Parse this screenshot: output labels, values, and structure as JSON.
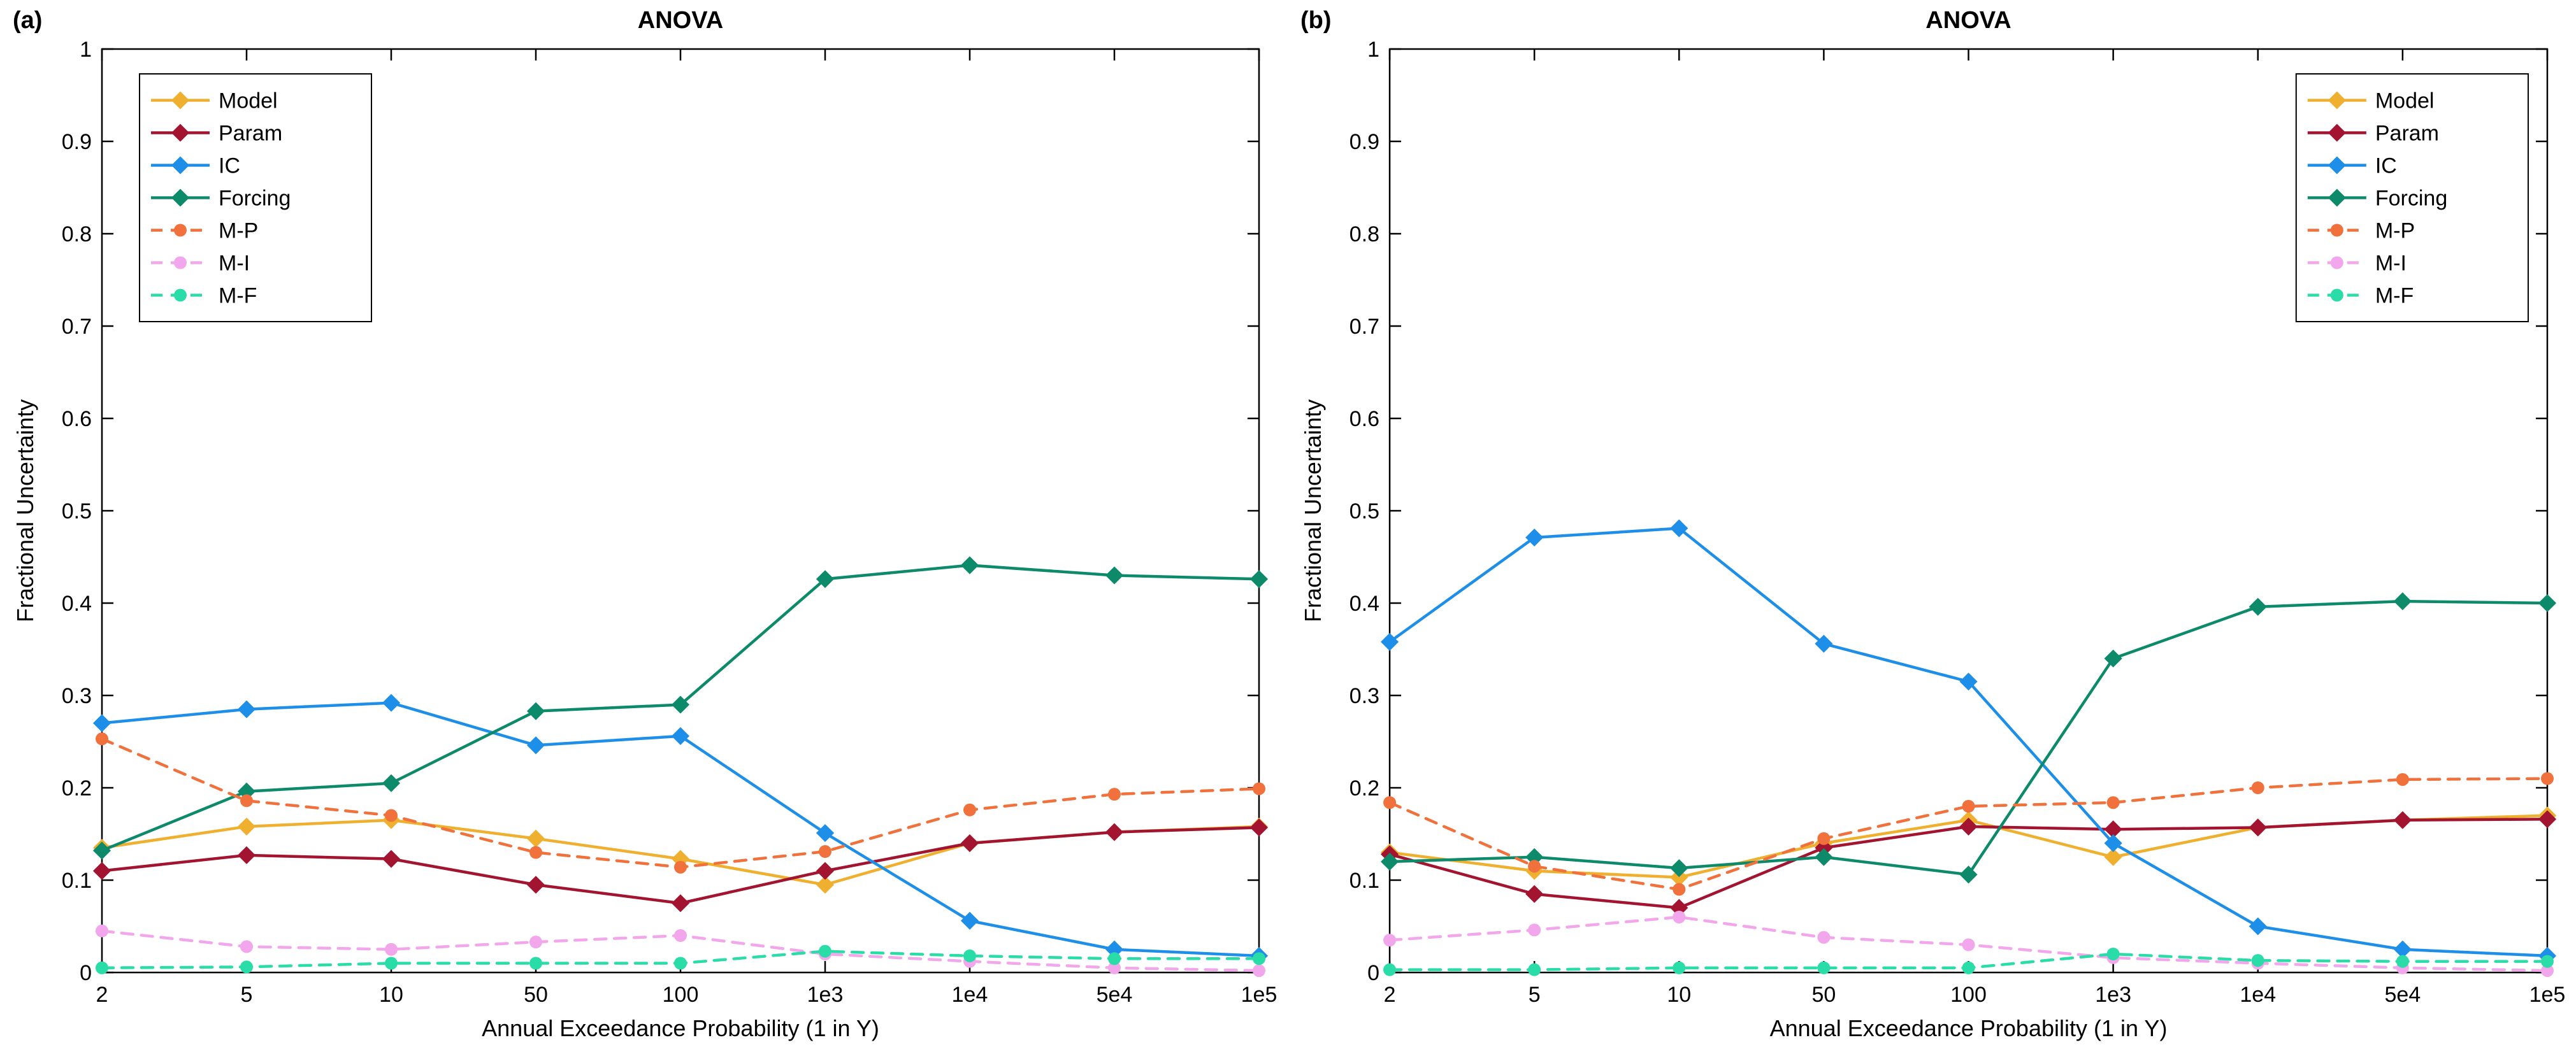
{
  "figure": {
    "background": "#ffffff",
    "text_color": "#000000",
    "axes_color": "#000000"
  },
  "chart_data": [
    {
      "type": "line",
      "panel_label": "(a)",
      "title": "ANOVA",
      "xlabel": "Annual Exceedance Probability (1 in Y)",
      "ylabel": "Fractional Uncertainty",
      "ylim": [
        0,
        1
      ],
      "ytick_labels": [
        "0",
        "0.1",
        "0.2",
        "0.3",
        "0.4",
        "0.5",
        "0.6",
        "0.7",
        "0.8",
        "0.9",
        "1"
      ],
      "categories": [
        "2",
        "5",
        "10",
        "50",
        "100",
        "1e3",
        "1e4",
        "5e4",
        "1e5"
      ],
      "grid": false,
      "legend_position": "top-left",
      "series": [
        {
          "name": "Model",
          "color": "#F0B02F",
          "line_style": "solid",
          "marker": "diamond",
          "values": [
            0.135,
            0.158,
            0.165,
            0.145,
            0.123,
            0.095,
            0.14,
            0.152,
            0.158
          ]
        },
        {
          "name": "Param",
          "color": "#A2142F",
          "line_style": "solid",
          "marker": "diamond",
          "values": [
            0.11,
            0.127,
            0.123,
            0.095,
            0.075,
            0.11,
            0.14,
            0.152,
            0.157
          ]
        },
        {
          "name": "IC",
          "color": "#1E8FE8",
          "line_style": "solid",
          "marker": "diamond",
          "values": [
            0.27,
            0.285,
            0.292,
            0.246,
            0.256,
            0.151,
            0.056,
            0.025,
            0.018
          ]
        },
        {
          "name": "Forcing",
          "color": "#0D8A6A",
          "line_style": "solid",
          "marker": "diamond",
          "values": [
            0.132,
            0.196,
            0.205,
            0.283,
            0.29,
            0.426,
            0.441,
            0.43,
            0.426
          ]
        },
        {
          "name": "M-P",
          "color": "#F0713C",
          "line_style": "dashed",
          "marker": "circle",
          "values": [
            0.253,
            0.186,
            0.17,
            0.13,
            0.114,
            0.131,
            0.176,
            0.193,
            0.199
          ]
        },
        {
          "name": "M-I",
          "color": "#F2A6EC",
          "line_style": "dashed",
          "marker": "circle",
          "values": [
            0.045,
            0.028,
            0.025,
            0.033,
            0.04,
            0.02,
            0.012,
            0.005,
            0.002
          ]
        },
        {
          "name": "M-F",
          "color": "#2ADCA8",
          "line_style": "dashed",
          "marker": "circle",
          "values": [
            0.005,
            0.006,
            0.01,
            0.01,
            0.01,
            0.023,
            0.018,
            0.015,
            0.015
          ]
        }
      ]
    },
    {
      "type": "line",
      "panel_label": "(b)",
      "title": "ANOVA",
      "xlabel": "Annual Exceedance Probability (1 in Y)",
      "ylabel": "Fractional Uncertainty",
      "ylim": [
        0,
        1
      ],
      "ytick_labels": [
        "0",
        "0.1",
        "0.2",
        "0.3",
        "0.4",
        "0.5",
        "0.6",
        "0.7",
        "0.8",
        "0.9",
        "1"
      ],
      "categories": [
        "2",
        "5",
        "10",
        "50",
        "100",
        "1e3",
        "1e4",
        "5e4",
        "1e5"
      ],
      "grid": false,
      "legend_position": "top-right",
      "series": [
        {
          "name": "Model",
          "color": "#F0B02F",
          "line_style": "solid",
          "marker": "diamond",
          "values": [
            0.13,
            0.11,
            0.103,
            0.14,
            0.165,
            0.125,
            0.157,
            0.165,
            0.17
          ]
        },
        {
          "name": "Param",
          "color": "#A2142F",
          "line_style": "solid",
          "marker": "diamond",
          "values": [
            0.128,
            0.085,
            0.07,
            0.135,
            0.158,
            0.155,
            0.157,
            0.165,
            0.166
          ]
        },
        {
          "name": "IC",
          "color": "#1E8FE8",
          "line_style": "solid",
          "marker": "diamond",
          "values": [
            0.358,
            0.471,
            0.481,
            0.356,
            0.315,
            0.14,
            0.05,
            0.025,
            0.018
          ]
        },
        {
          "name": "Forcing",
          "color": "#0D8A6A",
          "line_style": "solid",
          "marker": "diamond",
          "values": [
            0.12,
            0.125,
            0.113,
            0.125,
            0.106,
            0.34,
            0.396,
            0.402,
            0.4
          ]
        },
        {
          "name": "M-P",
          "color": "#F0713C",
          "line_style": "dashed",
          "marker": "circle",
          "values": [
            0.184,
            0.115,
            0.09,
            0.145,
            0.18,
            0.184,
            0.2,
            0.209,
            0.21
          ]
        },
        {
          "name": "M-I",
          "color": "#F2A6EC",
          "line_style": "dashed",
          "marker": "circle",
          "values": [
            0.035,
            0.046,
            0.06,
            0.038,
            0.03,
            0.016,
            0.01,
            0.005,
            0.002
          ]
        },
        {
          "name": "M-F",
          "color": "#2ADCA8",
          "line_style": "dashed",
          "marker": "circle",
          "values": [
            0.003,
            0.003,
            0.005,
            0.005,
            0.005,
            0.02,
            0.013,
            0.012,
            0.012
          ]
        }
      ]
    }
  ]
}
